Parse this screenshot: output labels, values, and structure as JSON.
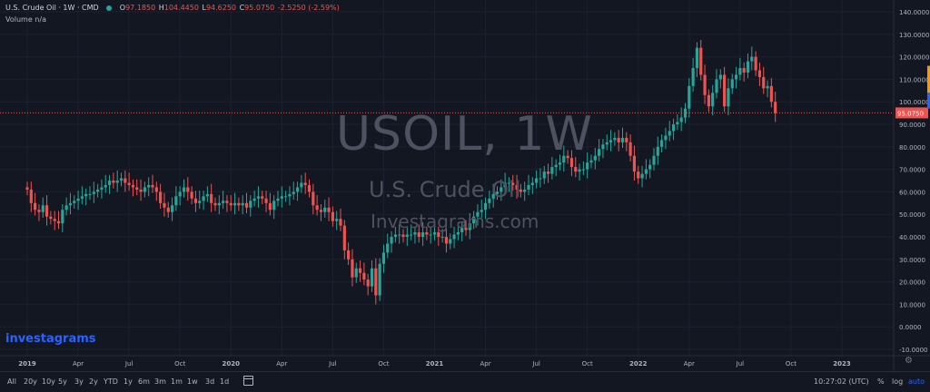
{
  "legend": {
    "symbol": "U.S. Crude Oil · 1W · CMD",
    "o_label": "O",
    "o": "97.1850",
    "h_label": "H",
    "h": "104.4450",
    "l_label": "L",
    "l": "94.6250",
    "c_label": "C",
    "c": "95.0750",
    "change": "-2.5250 (-2.59%)"
  },
  "volume": "Volume n/a",
  "watermark": {
    "title": "USOIL, 1W",
    "subtitle": "U.S. Crude Oil",
    "site": "Investagrams.com"
  },
  "brand": "investagrams",
  "bottom": {
    "timeframes": [
      "All",
      "20y",
      "10y",
      "5y",
      "3y",
      "2y",
      "YTD",
      "1y",
      "6m",
      "3m",
      "1m",
      "1w",
      "3d",
      "1d"
    ],
    "clock": "10:27:02 (UTC)",
    "percent": "%",
    "log": "log",
    "auto": "auto"
  },
  "colors": {
    "up": "#26a69a",
    "down": "#ef5350",
    "background": "#131722",
    "grid": "#1e222d",
    "last_price": "#ef5350"
  },
  "chart_data": {
    "type": "candlestick",
    "last_price": 95.075,
    "last_price_label": "95.0750",
    "ylim": [
      -12,
      143
    ],
    "y_ticks": [
      140,
      130,
      120,
      110,
      100,
      90,
      80,
      70,
      60,
      50,
      40,
      30,
      20,
      10,
      0,
      -10
    ],
    "y_tick_labels": [
      "140.0000",
      "130.0000",
      "120.0000",
      "110.0000",
      "100.0000",
      "90.0000",
      "80.0000",
      "70.0000",
      "60.0000",
      "50.0000",
      "40.0000",
      "30.0000",
      "20.0000",
      "10.0000",
      "0.0000",
      "-10.0000"
    ],
    "x_ticks": [
      {
        "label": "2019",
        "week": 0,
        "bold": true
      },
      {
        "label": "Apr",
        "week": 13
      },
      {
        "label": "Jul",
        "week": 26
      },
      {
        "label": "Oct",
        "week": 39
      },
      {
        "label": "2020",
        "week": 52,
        "bold": true
      },
      {
        "label": "Apr",
        "week": 65
      },
      {
        "label": "Jul",
        "week": 78
      },
      {
        "label": "Oct",
        "week": 91
      },
      {
        "label": "2021",
        "week": 104,
        "bold": true
      },
      {
        "label": "Apr",
        "week": 117
      },
      {
        "label": "Jul",
        "week": 130
      },
      {
        "label": "Oct",
        "week": 143
      },
      {
        "label": "2022",
        "week": 156,
        "bold": true
      },
      {
        "label": "Apr",
        "week": 169
      },
      {
        "label": "Jul",
        "week": 182
      },
      {
        "label": "Oct",
        "week": 195
      },
      {
        "label": "2023",
        "week": 208,
        "bold": true
      }
    ],
    "week_range": [
      -6,
      222
    ],
    "closes": [
      61,
      55,
      52,
      51,
      54,
      49,
      48,
      47,
      46,
      52,
      54,
      55,
      56,
      57,
      58,
      59,
      59,
      60,
      61,
      62,
      63,
      65,
      64,
      65,
      66,
      64,
      63,
      62,
      61,
      60,
      62,
      63,
      62,
      60,
      55,
      53,
      51,
      54,
      58,
      60,
      62,
      60,
      57,
      55,
      56,
      58,
      59,
      55,
      54,
      55,
      56,
      55,
      54,
      55,
      54,
      55,
      53,
      56,
      57,
      58,
      57,
      55,
      52,
      56,
      57,
      58,
      58,
      59,
      60,
      62,
      64,
      63,
      60,
      54,
      52,
      51,
      53,
      51,
      47,
      48,
      45,
      34,
      30,
      22,
      26,
      24,
      21,
      18,
      26,
      14,
      28,
      33,
      37,
      40,
      41,
      41,
      40,
      41,
      41,
      42,
      40,
      42,
      41,
      41,
      42,
      40,
      40,
      37,
      39,
      41,
      42,
      44,
      43,
      46,
      49,
      51,
      52,
      55,
      57,
      59,
      60,
      62,
      64,
      64,
      63,
      61,
      60,
      61,
      63,
      64,
      66,
      66,
      69,
      68,
      71,
      72,
      73,
      76,
      75,
      71,
      69,
      70,
      70,
      73,
      74,
      76,
      79,
      81,
      82,
      83,
      84,
      82,
      84,
      82,
      76,
      69,
      66,
      68,
      70,
      72,
      76,
      80,
      83,
      85,
      87,
      90,
      91,
      93,
      97,
      107,
      115,
      124,
      112,
      103,
      98,
      104,
      110,
      112,
      98,
      106,
      110,
      112,
      115,
      113,
      118,
      120,
      114,
      111,
      106,
      107,
      100,
      95
    ],
    "first_week": 0
  }
}
